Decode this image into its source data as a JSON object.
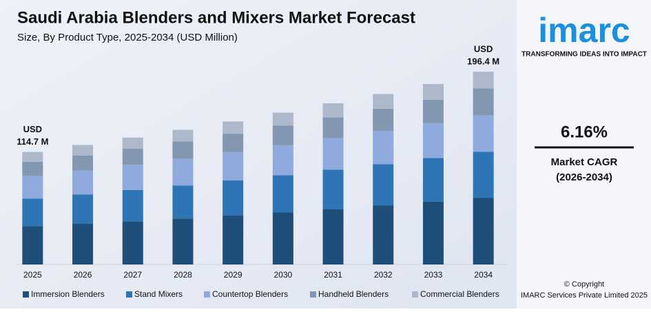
{
  "chart_data": {
    "type": "stacked_bar",
    "title": "Saudi Arabia Blenders and Mixers Market Forecast",
    "subtitle": "Size, By Product Type, 2025-2034 (USD Million)",
    "categories": [
      "2025",
      "2026",
      "2027",
      "2028",
      "2029",
      "2030",
      "2031",
      "2032",
      "2033",
      "2034"
    ],
    "series": [
      {
        "name": "Immersion Blenders",
        "color": "#1f4e79",
        "values": [
          39.0,
          41.4,
          44.0,
          46.8,
          49.8,
          53.0,
          56.4,
          60.0,
          63.9,
          68.0
        ]
      },
      {
        "name": "Stand Mixers",
        "color": "#2e75b6",
        "values": [
          28.2,
          30.0,
          31.8,
          33.7,
          35.8,
          37.9,
          40.1,
          42.3,
          44.5,
          46.9
        ]
      },
      {
        "name": "Countertop Blenders",
        "color": "#8faadc",
        "values": [
          22.9,
          24.3,
          25.8,
          27.3,
          28.9,
          30.6,
          32.3,
          33.8,
          35.5,
          37.1
        ]
      },
      {
        "name": "Handheld Blenders",
        "color": "#8497b0",
        "values": [
          14.5,
          15.4,
          16.5,
          17.6,
          18.7,
          19.9,
          21.2,
          22.6,
          24.0,
          27.3
        ]
      },
      {
        "name": "Commercial Blenders",
        "color": "#adb9ca",
        "values": [
          10.1,
          10.7,
          11.2,
          11.8,
          12.5,
          13.3,
          14.2,
          15.0,
          16.0,
          17.1
        ]
      }
    ],
    "ylim": [
      0,
      200
    ],
    "annotations": [
      {
        "category": 0,
        "value": 114.7,
        "lines": [
          "USD",
          "114.7 M"
        ]
      },
      {
        "category": 9,
        "value": 196.4,
        "lines": [
          "USD",
          "196.4 M"
        ]
      }
    ]
  },
  "sidebar": {
    "logo": "imarc",
    "tagline": "TRANSFORMING IDEAS INTO IMPACT",
    "cagr": "6.16%",
    "cagr_label": "Market CAGR",
    "cagr_period": "(2026-2034)",
    "copyright": "© Copyright",
    "company": "IMARC Services Private Limited 2025"
  }
}
